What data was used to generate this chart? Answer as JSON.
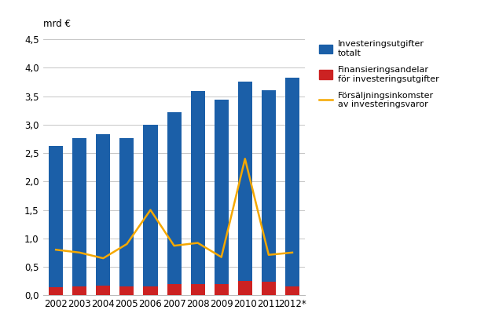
{
  "years": [
    "2002",
    "2003",
    "2004",
    "2005",
    "2006",
    "2007",
    "2008",
    "2009",
    "2010",
    "2011",
    "2012*"
  ],
  "investment_total": [
    2.62,
    2.77,
    2.83,
    2.77,
    3.0,
    3.22,
    3.59,
    3.44,
    3.76,
    3.61,
    3.83
  ],
  "financing_shares": [
    0.14,
    0.15,
    0.17,
    0.16,
    0.16,
    0.19,
    0.19,
    0.2,
    0.25,
    0.24,
    0.15
  ],
  "sales_income": [
    0.8,
    0.75,
    0.65,
    0.9,
    1.5,
    0.87,
    0.92,
    0.67,
    2.4,
    0.71,
    0.75
  ],
  "bar_color_blue": "#1b5fa8",
  "bar_color_red": "#cc2222",
  "line_color": "#f5a800",
  "ylim": [
    0,
    4.5
  ],
  "yticks": [
    0.0,
    0.5,
    1.0,
    1.5,
    2.0,
    2.5,
    3.0,
    3.5,
    4.0,
    4.5
  ],
  "ylabel": "mrd €",
  "legend_blue": "Investeringsutgifter\ntotalt",
  "legend_red": "Finansieringsandelar\nför investeringsutgifter",
  "legend_line": "Försäljningsinkomster\nav investeringsvaror",
  "background_color": "#ffffff",
  "grid_color": "#bbbbbb",
  "bar_width": 0.6
}
